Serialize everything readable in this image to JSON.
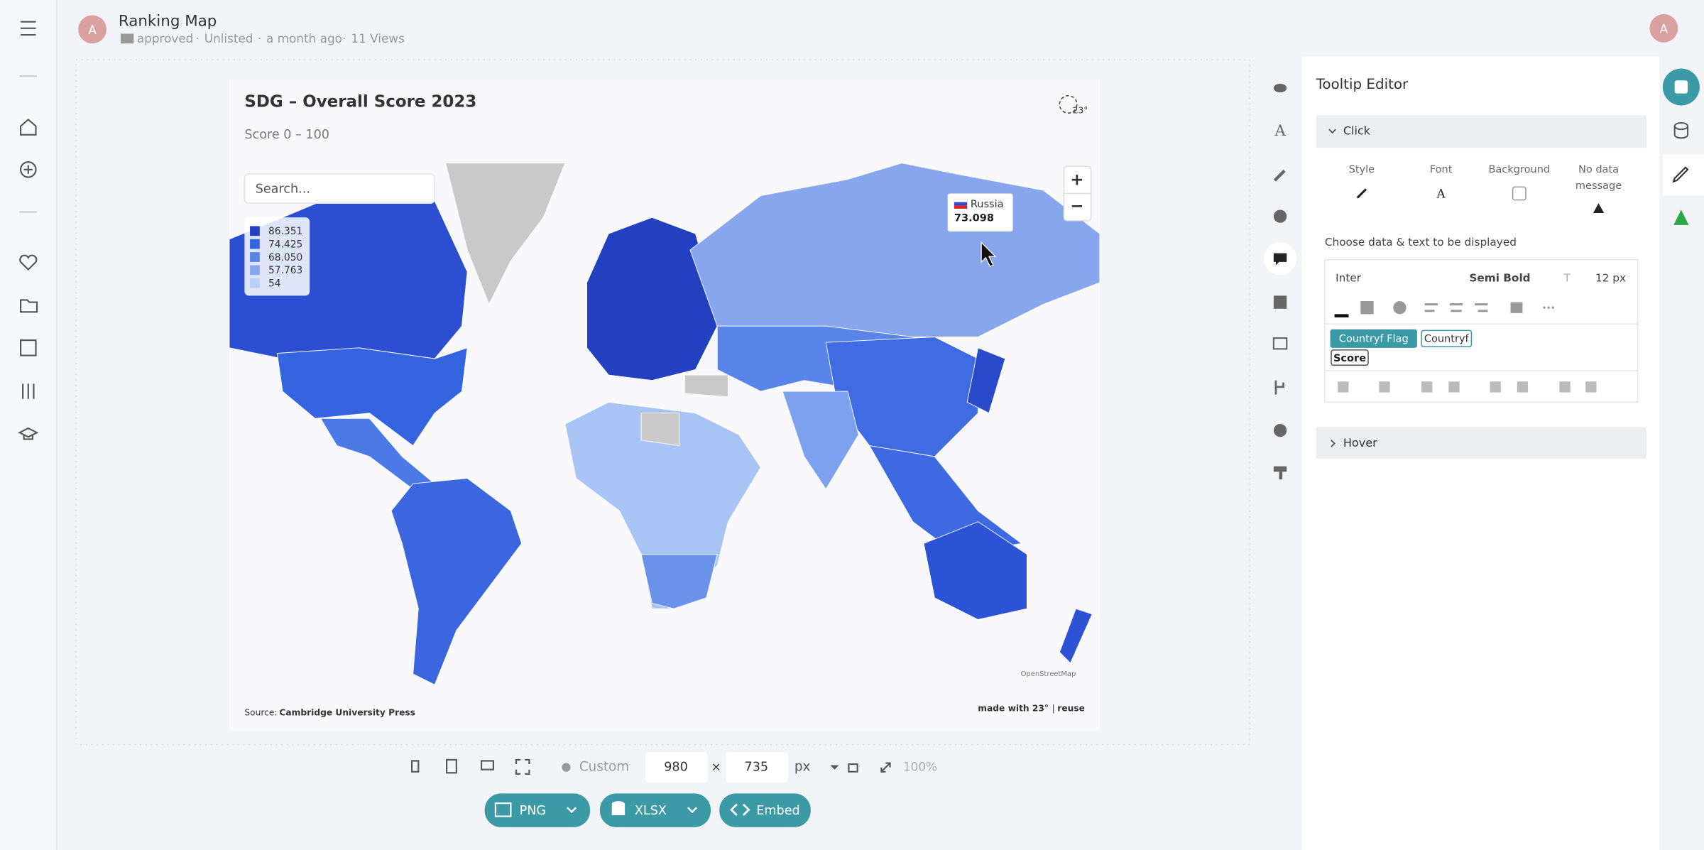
{
  "header": {
    "avatar": "A",
    "title": "Ranking Map",
    "folder": "approved",
    "visibility": "Unlisted",
    "time": "a month ago",
    "views": "11 Views",
    "user_avatar": "A"
  },
  "chart": {
    "title": "SDG – Overall Score 2023",
    "subtitle": "Score 0 – 100",
    "search_placeholder": "Search...",
    "logo": "23°",
    "legend": [
      "86.351",
      "74.425",
      "68.050",
      "57.763",
      "54"
    ],
    "tooltip": {
      "country": "Russia",
      "value": "73.098"
    },
    "zoom_in": "+",
    "zoom_out": "−",
    "attribution": "OpenStreetMap",
    "source_label": "Source:",
    "source": "Cambridge University Press",
    "made_with": "made with 23°",
    "reuse": "reuse"
  },
  "toolbar": {
    "size_mode": "Custom",
    "width": "980",
    "times": "×",
    "height": "735",
    "unit": "px",
    "zoom": "100%"
  },
  "exports": [
    "PNG",
    "XLSX",
    "Embed"
  ],
  "editor": {
    "title": "Tooltip Editor",
    "click": "Click",
    "style": "Style",
    "font": "Font",
    "background": "Background",
    "no_data": [
      "No data",
      "message"
    ],
    "choose": "Choose data & text to be displayed",
    "font_family": "Inter",
    "font_weight": "Semi Bold",
    "font_size": "12 px",
    "tags": [
      "Countryf Flag",
      "Countryf",
      "Score"
    ],
    "hover": "Hover"
  }
}
